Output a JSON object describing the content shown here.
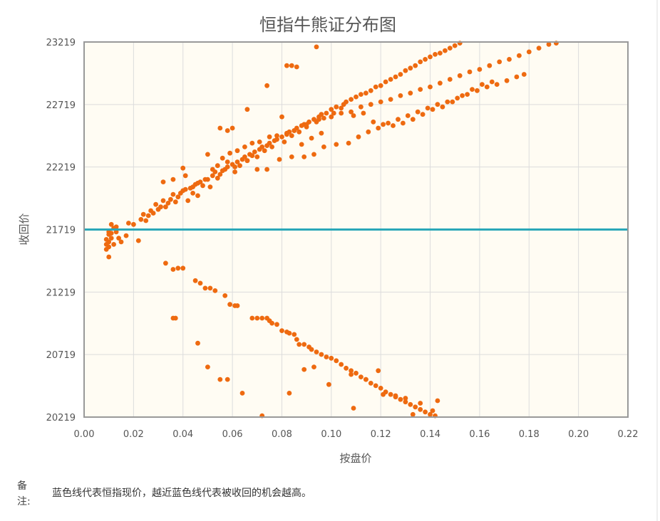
{
  "chart_data": {
    "type": "scatter",
    "title": "恒指牛熊证分布图",
    "xlabel": "按盘价",
    "ylabel": "收回价",
    "xlim": [
      0.0,
      0.22
    ],
    "ylim": [
      20219,
      23219
    ],
    "x_ticks": [
      "0.00",
      "0.02",
      "0.04",
      "0.06",
      "0.08",
      "0.10",
      "0.12",
      "0.14",
      "0.16",
      "0.18",
      "0.20",
      "0.22"
    ],
    "y_ticks": [
      "20219",
      "20719",
      "21219",
      "21719",
      "22219",
      "22719",
      "23219"
    ],
    "reference_line": {
      "y": 21719,
      "color": "#2aa7b8"
    },
    "point_color": "#ee6a10",
    "grid": true,
    "series": [
      {
        "values": [
          [
            0.009,
            21640
          ],
          [
            0.009,
            21600
          ],
          [
            0.009,
            21560
          ],
          [
            0.01,
            21700
          ],
          [
            0.01,
            21680
          ],
          [
            0.01,
            21620
          ],
          [
            0.01,
            21580
          ],
          [
            0.01,
            21500
          ],
          [
            0.011,
            21760
          ],
          [
            0.011,
            21690
          ],
          [
            0.011,
            21650
          ],
          [
            0.012,
            21730
          ],
          [
            0.012,
            21600
          ],
          [
            0.013,
            21740
          ],
          [
            0.013,
            21700
          ],
          [
            0.014,
            21650
          ],
          [
            0.015,
            21620
          ],
          [
            0.017,
            21670
          ],
          [
            0.018,
            21770
          ],
          [
            0.02,
            21760
          ],
          [
            0.022,
            21630
          ],
          [
            0.023,
            21800
          ],
          [
            0.024,
            21840
          ],
          [
            0.025,
            21790
          ],
          [
            0.026,
            21830
          ],
          [
            0.027,
            21870
          ],
          [
            0.028,
            21850
          ],
          [
            0.029,
            21920
          ],
          [
            0.03,
            21880
          ],
          [
            0.031,
            21900
          ],
          [
            0.032,
            21950
          ],
          [
            0.033,
            21900
          ],
          [
            0.034,
            21930
          ],
          [
            0.035,
            21960
          ],
          [
            0.036,
            22000
          ],
          [
            0.037,
            21940
          ],
          [
            0.038,
            21980
          ],
          [
            0.039,
            22010
          ],
          [
            0.04,
            22030
          ],
          [
            0.041,
            22040
          ],
          [
            0.042,
            21950
          ],
          [
            0.043,
            22050
          ],
          [
            0.044,
            22060
          ],
          [
            0.045,
            22080
          ],
          [
            0.046,
            22090
          ],
          [
            0.047,
            22100
          ],
          [
            0.048,
            22070
          ],
          [
            0.05,
            22120
          ],
          [
            0.051,
            22060
          ],
          [
            0.052,
            22150
          ],
          [
            0.053,
            22180
          ],
          [
            0.054,
            22130
          ],
          [
            0.055,
            22160
          ],
          [
            0.056,
            22190
          ],
          [
            0.057,
            22200
          ],
          [
            0.058,
            22220
          ],
          [
            0.06,
            22240
          ],
          [
            0.061,
            22180
          ],
          [
            0.062,
            22260
          ],
          [
            0.063,
            22230
          ],
          [
            0.064,
            22280
          ],
          [
            0.065,
            22300
          ],
          [
            0.066,
            22270
          ],
          [
            0.067,
            22320
          ],
          [
            0.068,
            22310
          ],
          [
            0.069,
            22340
          ],
          [
            0.07,
            22300
          ],
          [
            0.071,
            22360
          ],
          [
            0.072,
            22380
          ],
          [
            0.073,
            22350
          ],
          [
            0.074,
            22390
          ],
          [
            0.075,
            22410
          ],
          [
            0.076,
            22380
          ],
          [
            0.077,
            22430
          ],
          [
            0.078,
            22440
          ],
          [
            0.08,
            22460
          ],
          [
            0.081,
            22420
          ],
          [
            0.082,
            22480
          ],
          [
            0.083,
            22500
          ],
          [
            0.084,
            22470
          ],
          [
            0.085,
            22510
          ],
          [
            0.086,
            22530
          ],
          [
            0.087,
            22500
          ],
          [
            0.088,
            22550
          ],
          [
            0.089,
            22560
          ],
          [
            0.09,
            22540
          ],
          [
            0.091,
            22580
          ],
          [
            0.093,
            22600
          ],
          [
            0.094,
            22580
          ],
          [
            0.095,
            22620
          ],
          [
            0.096,
            22640
          ],
          [
            0.097,
            22610
          ],
          [
            0.098,
            22650
          ],
          [
            0.1,
            22680
          ],
          [
            0.101,
            22650
          ],
          [
            0.102,
            22700
          ],
          [
            0.104,
            22690
          ],
          [
            0.105,
            22720
          ],
          [
            0.106,
            22740
          ],
          [
            0.108,
            22760
          ],
          [
            0.11,
            22780
          ],
          [
            0.112,
            22800
          ],
          [
            0.114,
            22810
          ],
          [
            0.116,
            22830
          ],
          [
            0.118,
            22860
          ],
          [
            0.12,
            22870
          ],
          [
            0.122,
            22900
          ],
          [
            0.124,
            22920
          ],
          [
            0.126,
            22940
          ],
          [
            0.128,
            22960
          ],
          [
            0.13,
            22990
          ],
          [
            0.132,
            23010
          ],
          [
            0.134,
            23030
          ],
          [
            0.136,
            23060
          ],
          [
            0.138,
            23080
          ],
          [
            0.14,
            23100
          ],
          [
            0.142,
            23120
          ],
          [
            0.144,
            23130
          ],
          [
            0.146,
            23150
          ],
          [
            0.148,
            23170
          ],
          [
            0.15,
            23190
          ],
          [
            0.152,
            23210
          ],
          [
            0.04,
            22210
          ],
          [
            0.041,
            22150
          ],
          [
            0.044,
            22010
          ],
          [
            0.046,
            21990
          ],
          [
            0.049,
            22120
          ],
          [
            0.052,
            22200
          ],
          [
            0.054,
            22230
          ],
          [
            0.056,
            22290
          ],
          [
            0.059,
            22330
          ],
          [
            0.062,
            22350
          ],
          [
            0.065,
            22380
          ],
          [
            0.068,
            22410
          ],
          [
            0.071,
            22420
          ],
          [
            0.075,
            22460
          ],
          [
            0.078,
            22470
          ],
          [
            0.082,
            22490
          ],
          [
            0.085,
            22510
          ],
          [
            0.09,
            22560
          ],
          [
            0.095,
            22600
          ],
          [
            0.1,
            22620
          ],
          [
            0.104,
            22650
          ],
          [
            0.108,
            22660
          ],
          [
            0.112,
            22700
          ],
          [
            0.116,
            22720
          ],
          [
            0.12,
            22740
          ],
          [
            0.124,
            22760
          ],
          [
            0.128,
            22790
          ],
          [
            0.132,
            22810
          ],
          [
            0.136,
            22840
          ],
          [
            0.14,
            22860
          ],
          [
            0.144,
            22890
          ],
          [
            0.148,
            22920
          ],
          [
            0.152,
            22950
          ],
          [
            0.156,
            22980
          ],
          [
            0.16,
            23000
          ],
          [
            0.164,
            23030
          ],
          [
            0.168,
            23060
          ],
          [
            0.172,
            23080
          ],
          [
            0.176,
            23110
          ],
          [
            0.18,
            23140
          ],
          [
            0.184,
            23170
          ],
          [
            0.188,
            23200
          ],
          [
            0.191,
            23210
          ],
          [
            0.058,
            22260
          ],
          [
            0.061,
            22220
          ],
          [
            0.066,
            22270
          ],
          [
            0.07,
            22200
          ],
          [
            0.074,
            22200
          ],
          [
            0.079,
            22280
          ],
          [
            0.084,
            22300
          ],
          [
            0.089,
            22300
          ],
          [
            0.093,
            22320
          ],
          [
            0.097,
            22380
          ],
          [
            0.102,
            22400
          ],
          [
            0.107,
            22410
          ],
          [
            0.111,
            22460
          ],
          [
            0.115,
            22500
          ],
          [
            0.119,
            22530
          ],
          [
            0.123,
            22570
          ],
          [
            0.127,
            22600
          ],
          [
            0.131,
            22630
          ],
          [
            0.135,
            22660
          ],
          [
            0.139,
            22690
          ],
          [
            0.143,
            22720
          ],
          [
            0.147,
            22740
          ],
          [
            0.151,
            22770
          ],
          [
            0.155,
            22800
          ],
          [
            0.159,
            22830
          ],
          [
            0.163,
            22860
          ],
          [
            0.167,
            22880
          ],
          [
            0.171,
            22910
          ],
          [
            0.175,
            22940
          ],
          [
            0.178,
            22960
          ],
          [
            0.032,
            22100
          ],
          [
            0.036,
            22120
          ],
          [
            0.05,
            22320
          ],
          [
            0.055,
            22530
          ],
          [
            0.058,
            22510
          ],
          [
            0.06,
            22530
          ],
          [
            0.066,
            22680
          ],
          [
            0.074,
            22870
          ],
          [
            0.08,
            22620
          ],
          [
            0.082,
            23030
          ],
          [
            0.084,
            23030
          ],
          [
            0.086,
            23020
          ],
          [
            0.094,
            23180
          ],
          [
            0.088,
            22400
          ],
          [
            0.092,
            22450
          ],
          [
            0.096,
            22490
          ],
          [
            0.109,
            22630
          ],
          [
            0.113,
            22650
          ],
          [
            0.117,
            22580
          ],
          [
            0.121,
            22560
          ],
          [
            0.125,
            22550
          ],
          [
            0.129,
            22570
          ],
          [
            0.133,
            22600
          ],
          [
            0.137,
            22640
          ],
          [
            0.141,
            22680
          ],
          [
            0.145,
            22700
          ],
          [
            0.149,
            22740
          ],
          [
            0.153,
            22790
          ],
          [
            0.157,
            22840
          ],
          [
            0.161,
            22880
          ],
          [
            0.165,
            22900
          ],
          [
            0.033,
            21450
          ],
          [
            0.036,
            21400
          ],
          [
            0.038,
            21410
          ],
          [
            0.04,
            21410
          ],
          [
            0.045,
            21310
          ],
          [
            0.047,
            21290
          ],
          [
            0.049,
            21250
          ],
          [
            0.051,
            21250
          ],
          [
            0.053,
            21230
          ],
          [
            0.057,
            21190
          ],
          [
            0.059,
            21120
          ],
          [
            0.061,
            21110
          ],
          [
            0.062,
            21110
          ],
          [
            0.068,
            21010
          ],
          [
            0.07,
            21010
          ],
          [
            0.072,
            21010
          ],
          [
            0.074,
            21010
          ],
          [
            0.075,
            20990
          ],
          [
            0.076,
            20970
          ],
          [
            0.078,
            20960
          ],
          [
            0.08,
            20910
          ],
          [
            0.082,
            20900
          ],
          [
            0.083,
            20890
          ],
          [
            0.085,
            20880
          ],
          [
            0.086,
            20840
          ],
          [
            0.087,
            20800
          ],
          [
            0.089,
            20800
          ],
          [
            0.091,
            20780
          ],
          [
            0.092,
            20760
          ],
          [
            0.094,
            20740
          ],
          [
            0.096,
            20720
          ],
          [
            0.098,
            20700
          ],
          [
            0.1,
            20690
          ],
          [
            0.102,
            20670
          ],
          [
            0.104,
            20640
          ],
          [
            0.106,
            20610
          ],
          [
            0.108,
            20590
          ],
          [
            0.11,
            20570
          ],
          [
            0.112,
            20540
          ],
          [
            0.114,
            20520
          ],
          [
            0.116,
            20490
          ],
          [
            0.118,
            20470
          ],
          [
            0.12,
            20450
          ],
          [
            0.122,
            20420
          ],
          [
            0.124,
            20400
          ],
          [
            0.126,
            20380
          ],
          [
            0.128,
            20360
          ],
          [
            0.13,
            20340
          ],
          [
            0.132,
            20320
          ],
          [
            0.134,
            20300
          ],
          [
            0.136,
            20280
          ],
          [
            0.138,
            20260
          ],
          [
            0.14,
            20240
          ],
          [
            0.142,
            20230
          ],
          [
            0.036,
            21010
          ],
          [
            0.037,
            21010
          ],
          [
            0.046,
            20810
          ],
          [
            0.05,
            20620
          ],
          [
            0.055,
            20520
          ],
          [
            0.058,
            20520
          ],
          [
            0.064,
            20410
          ],
          [
            0.072,
            20230
          ],
          [
            0.083,
            20410
          ],
          [
            0.089,
            20600
          ],
          [
            0.093,
            20620
          ],
          [
            0.099,
            20480
          ],
          [
            0.108,
            20560
          ],
          [
            0.114,
            20520
          ],
          [
            0.121,
            20400
          ],
          [
            0.126,
            20390
          ],
          [
            0.13,
            20370
          ],
          [
            0.136,
            20330
          ],
          [
            0.141,
            20270
          ],
          [
            0.143,
            20350
          ],
          [
            0.109,
            20290
          ],
          [
            0.119,
            20590
          ],
          [
            0.133,
            20240
          ]
        ]
      }
    ]
  },
  "note": {
    "label": "备注:",
    "text": "蓝色线代表恒指现价，越近蓝色线代表被收回的机会越高。"
  }
}
